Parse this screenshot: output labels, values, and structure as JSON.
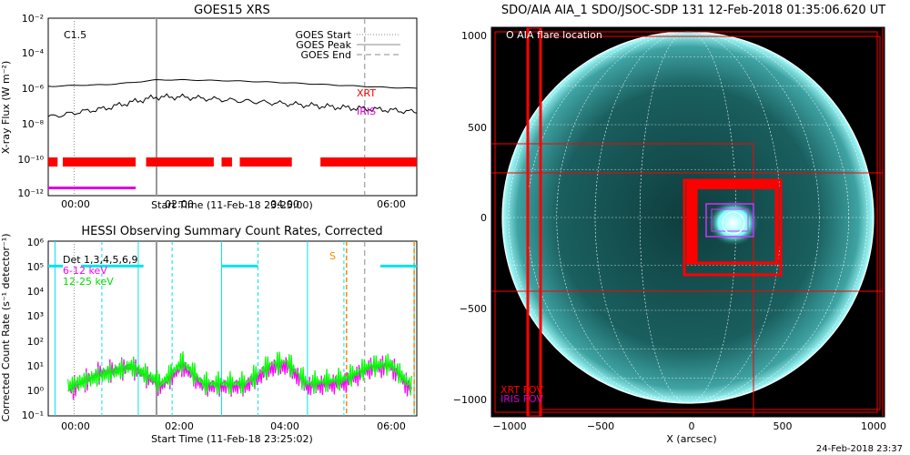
{
  "goes": {
    "title": "GOES15 XRS",
    "class_label": "C1.5",
    "ylabel": "X-ray Flux (W m⁻²)",
    "xlabel": "Start Time (11-Feb-18 23:25:00)",
    "xticks": [
      "00:00",
      "02:00",
      "04:00",
      "06:00"
    ],
    "yticks": [
      "10⁻²",
      "10⁻⁴",
      "10⁻⁶",
      "10⁻⁸",
      "10⁻¹⁰",
      "10⁻¹²"
    ],
    "legend": [
      "GOES Start",
      "GOES Peak",
      "GOES End"
    ],
    "labels": {
      "xrt": "XRT",
      "iris": "IRIS"
    },
    "colors": {
      "xrt": "#ff0000",
      "iris": "#dd00dd",
      "start": "#888888",
      "peak": "#888888",
      "end": "#888888"
    }
  },
  "hessi": {
    "title": "HESSI Observing Summary Count Rates, Corrected",
    "ylabel": "Corrected Count Rate (s⁻¹ detector⁻¹)",
    "xlabel": "Start Time (11-Feb-18 23:25:02)",
    "xticks": [
      "00:00",
      "02:00",
      "04:00",
      "06:00"
    ],
    "yticks": [
      "10⁶",
      "10⁵",
      "10⁴",
      "10³",
      "10²",
      "10¹",
      "10⁰",
      "10⁻¹"
    ],
    "legend": [
      "Det 1,3,4,5,6,9",
      "6-12 keV",
      "12-25 keV"
    ],
    "saa_label": "S",
    "colors": {
      "det": "#00e5e5",
      "low": "#ff00ff",
      "high": "#00ff00",
      "saa": "#ff8800"
    }
  },
  "aia": {
    "title": "SDO/AIA AIA_1 SDO/JSOC-SDP 131 12-Feb-2018 01:35:06.620 UT",
    "flare_label": "O AIA flare location",
    "xlabel": "X (arcsec)",
    "xticks": [
      "−1000",
      "−500",
      "0",
      "500",
      "1000"
    ],
    "yticks": [
      "1000",
      "500",
      "0",
      "−500",
      "−1000"
    ],
    "fov_labels": [
      "XRT FOV",
      "IRIS FOV"
    ],
    "date_stamp": "24-Feb-2018 23:37"
  },
  "chart_data": [
    {
      "type": "line",
      "title": "GOES15 XRS",
      "xlabel": "Start Time (11-Feb-18 23:25:00)",
      "ylabel": "X-ray Flux (W m^-2)",
      "yscale": "log",
      "ylim": [
        1e-13,
        0.01
      ],
      "xlim_hours": [
        -0.58,
        6.5
      ],
      "x_hours": [
        -0.5,
        0.0,
        0.5,
        1.0,
        1.5,
        2.0,
        3.0,
        4.0,
        5.0,
        6.0,
        6.5
      ],
      "series": [
        {
          "name": "",
          "values": [
            6e-07,
            7e-07,
            7.5e-07,
            1e-06,
            1.5e-06,
            1.5e-06,
            1.3e-06,
            1e-06,
            7e-07,
            5e-07,
            4.5e-07
          ]
        },
        {
          "name": "",
          "values": [
            8e-09,
            1.5e-08,
            2.5e-08,
            6e-08,
            1.3e-07,
            1.3e-07,
            8e-08,
            5e-08,
            3e-08,
            2e-08,
            1.5e-08
          ]
        }
      ],
      "goes_start_h": -0.08,
      "goes_peak_h": 1.5,
      "goes_end_h": 5.5,
      "xrt_coverage_h": [
        [
          -0.58,
          -0.4
        ],
        [
          -0.3,
          1.1
        ],
        [
          1.3,
          2.6
        ],
        [
          2.75,
          2.95
        ],
        [
          3.1,
          4.1
        ],
        [
          4.65,
          6.5
        ]
      ],
      "iris_coverage_h": [
        [
          -0.58,
          1.1
        ]
      ]
    },
    {
      "type": "line",
      "title": "HESSI Observing Summary Count Rates, Corrected",
      "xlabel": "Start Time (11-Feb-18 23:25:02)",
      "ylabel": "Corrected Count Rate (s^-1 detector^-1)",
      "yscale": "log",
      "ylim": [
        0.1,
        1000000.0
      ],
      "xlim_hours": [
        -0.58,
        6.5
      ],
      "series": [
        {
          "name": "6-12 keV",
          "x_hours": [
            -0.2,
            0.4,
            0.9,
            1.0,
            1.6,
            2.0,
            2.4,
            3.2,
            3.7,
            4.0,
            4.4,
            5.1,
            5.6,
            6.0,
            6.4
          ],
          "values": [
            1,
            5,
            8,
            10,
            1.5,
            10,
            1.5,
            1.5,
            8,
            10,
            1.5,
            2,
            8,
            10,
            1
          ]
        },
        {
          "name": "12-25 keV",
          "x_hours": [
            -0.2,
            0.4,
            0.9,
            1.0,
            1.6,
            2.0,
            2.4,
            3.2,
            3.7,
            4.0,
            4.4,
            5.1,
            5.6,
            6.0,
            6.4
          ],
          "values": [
            1.5,
            4,
            8,
            10,
            2,
            15,
            2,
            2,
            12,
            15,
            2,
            3,
            10,
            12,
            1.5
          ]
        }
      ],
      "det_level_segments_h": [
        [
          -0.58,
          -0.3
        ],
        [
          0.05,
          1.25
        ],
        [
          2.75,
          3.45
        ],
        [
          5.8,
          6.5
        ]
      ],
      "det_level": 100000.0
    }
  ]
}
